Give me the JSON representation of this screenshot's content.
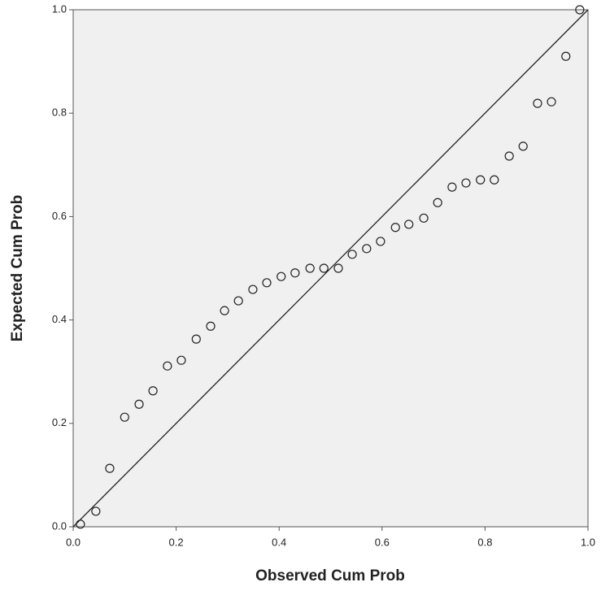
{
  "chart_data": {
    "type": "scatter",
    "x_label": "Observed Cum Prob",
    "y_label": "Expected Cum Prob",
    "x": [
      0.014,
      0.044,
      0.071,
      0.1,
      0.128,
      0.155,
      0.183,
      0.21,
      0.239,
      0.267,
      0.294,
      0.321,
      0.349,
      0.376,
      0.404,
      0.431,
      0.46,
      0.487,
      0.515,
      0.542,
      0.57,
      0.597,
      0.626,
      0.652,
      0.681,
      0.708,
      0.736,
      0.763,
      0.791,
      0.818,
      0.847,
      0.874,
      0.902,
      0.929,
      0.957,
      0.984
    ],
    "values": [
      0.005,
      0.03,
      0.113,
      0.212,
      0.237,
      0.263,
      0.311,
      0.322,
      0.363,
      0.388,
      0.418,
      0.437,
      0.459,
      0.472,
      0.484,
      0.491,
      0.5,
      0.5,
      0.5,
      0.527,
      0.538,
      0.552,
      0.579,
      0.585,
      0.597,
      0.627,
      0.657,
      0.665,
      0.671,
      0.671,
      0.717,
      0.736,
      0.819,
      0.822,
      0.91,
      1.0
    ],
    "color": "#222222",
    "xlim": [
      0,
      1
    ],
    "ylim": [
      0,
      1
    ],
    "xticks": [
      {
        "value": 0,
        "label": "0.0"
      },
      {
        "value": 0.2,
        "label": "0.2"
      },
      {
        "value": 0.4,
        "label": "0.4"
      },
      {
        "value": 0.6,
        "label": "0.6"
      },
      {
        "value": 0.8,
        "label": "0.8"
      },
      {
        "value": 1,
        "label": "1.0"
      }
    ],
    "yticks": [
      {
        "value": 0,
        "label": "0.0"
      },
      {
        "value": 0.2,
        "label": "0.2"
      },
      {
        "value": 0.4,
        "label": "0.4"
      },
      {
        "value": 0.6,
        "label": "0.6"
      },
      {
        "value": 0.8,
        "label": "0.8"
      },
      {
        "value": 1,
        "label": "1.0"
      }
    ],
    "reference_line": true
  }
}
